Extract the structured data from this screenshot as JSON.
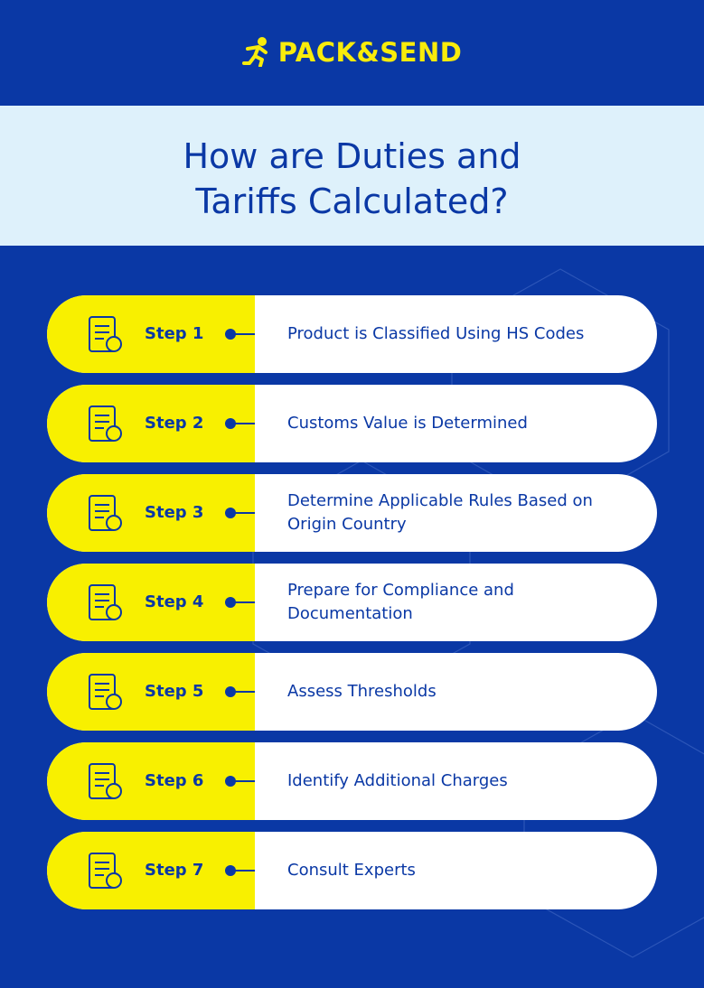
{
  "header": {
    "logo": "PACK&SEND"
  },
  "title": "How are Duties and Tariffs Calculated?",
  "steps": [
    {
      "label": "Step 1",
      "text": "Product is Classified Using HS Codes"
    },
    {
      "label": "Step 2",
      "text": "Customs Value is Determined"
    },
    {
      "label": "Step 3",
      "text": "Determine Applicable Rules Based on Origin Country"
    },
    {
      "label": "Step 4",
      "text": "Prepare for Compliance and Documentation"
    },
    {
      "label": "Step 5",
      "text": "Assess Thresholds"
    },
    {
      "label": "Step 6",
      "text": "Identify Additional Charges"
    },
    {
      "label": "Step 7",
      "text": "Consult Experts"
    }
  ]
}
